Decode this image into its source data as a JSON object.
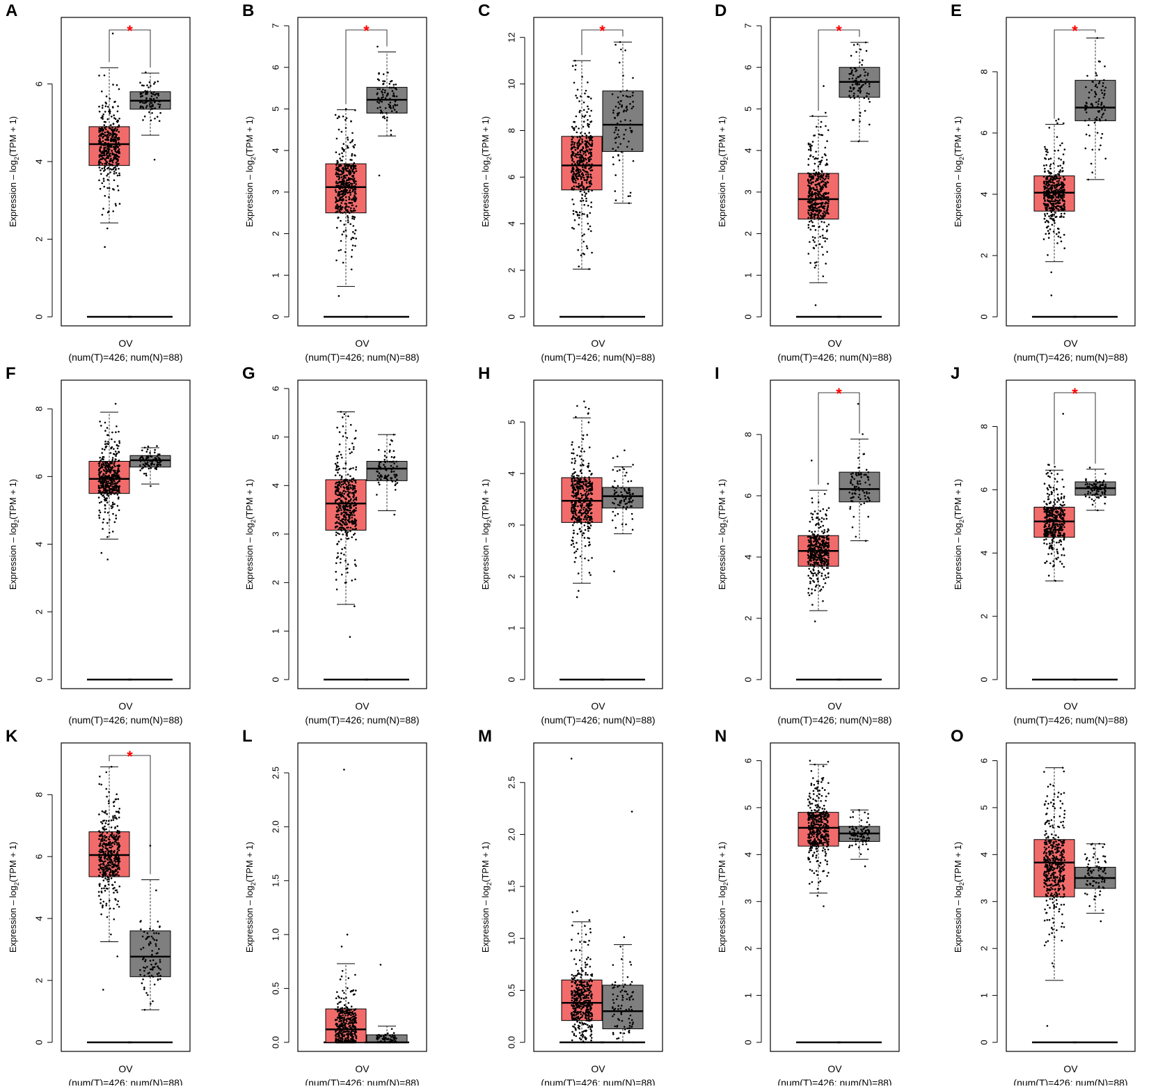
{
  "figure": {
    "colors": {
      "tumor": "#f26b6b",
      "normal": "#7f7f7f",
      "star": "#ff0000",
      "axis": "#000000"
    },
    "y_axis_label_prefix": "Expression – log",
    "y_axis_label_sub": "2",
    "y_axis_label_suffix": "(TPM + 1)",
    "x_tick_label": "OV",
    "x_sub_label": "(num(T)=426; num(N)=88)",
    "significance_marker": "*"
  },
  "chart_data": [
    {
      "panel": "A",
      "type": "box",
      "ylim": [
        0,
        7.5
      ],
      "yticks": [
        "0",
        "2",
        "4",
        "6"
      ],
      "significant": true,
      "tumor": {
        "n": 426,
        "q1": 3.9,
        "median": 4.45,
        "q3": 4.9,
        "whisker_low": 2.42,
        "whisker_high": 6.42,
        "min": 1.8,
        "max": 7.3
      },
      "normal": {
        "n": 88,
        "q1": 5.35,
        "median": 5.57,
        "q3": 5.8,
        "whisker_low": 4.68,
        "whisker_high": 6.28,
        "min": 4.05,
        "max": 6.3
      }
    },
    {
      "panel": "B",
      "type": "box",
      "ylim": [
        0,
        7
      ],
      "yticks": [
        "0",
        "1",
        "2",
        "3",
        "4",
        "5",
        "6",
        "7"
      ],
      "significant": true,
      "tumor": {
        "n": 426,
        "q1": 2.5,
        "median": 3.12,
        "q3": 3.68,
        "whisker_low": 0.73,
        "whisker_high": 4.98,
        "min": 0.5,
        "max": 5.0
      },
      "normal": {
        "n": 88,
        "q1": 4.9,
        "median": 5.22,
        "q3": 5.52,
        "whisker_low": 4.35,
        "whisker_high": 6.37,
        "min": 3.4,
        "max": 6.5
      }
    },
    {
      "panel": "C",
      "type": "box",
      "ylim": [
        0,
        12.5
      ],
      "yticks": [
        "0",
        "2",
        "4",
        "6",
        "8",
        "10",
        "12"
      ],
      "significant": true,
      "tumor": {
        "n": 426,
        "q1": 5.45,
        "median": 6.5,
        "q3": 7.75,
        "whisker_low": 2.05,
        "whisker_high": 11.0,
        "min": 2.05,
        "max": 11.0
      },
      "normal": {
        "n": 88,
        "q1": 7.1,
        "median": 8.25,
        "q3": 9.7,
        "whisker_low": 4.88,
        "whisker_high": 11.8,
        "min": 4.88,
        "max": 11.8
      }
    },
    {
      "panel": "D",
      "type": "box",
      "ylim": [
        0,
        7
      ],
      "yticks": [
        "0",
        "1",
        "2",
        "3",
        "4",
        "5",
        "6",
        "7"
      ],
      "significant": true,
      "tumor": {
        "n": 426,
        "q1": 2.35,
        "median": 2.83,
        "q3": 3.45,
        "whisker_low": 0.82,
        "whisker_high": 4.82,
        "min": 0.28,
        "max": 5.55
      },
      "normal": {
        "n": 88,
        "q1": 5.28,
        "median": 5.65,
        "q3": 6.0,
        "whisker_low": 4.22,
        "whisker_high": 6.6,
        "min": 4.22,
        "max": 6.6
      }
    },
    {
      "panel": "E",
      "type": "box",
      "ylim": [
        0,
        9.5
      ],
      "yticks": [
        "0",
        "2",
        "4",
        "6",
        "8"
      ],
      "significant": true,
      "tumor": {
        "n": 426,
        "q1": 3.45,
        "median": 4.05,
        "q3": 4.6,
        "whisker_low": 1.8,
        "whisker_high": 6.28,
        "min": 0.7,
        "max": 6.45
      },
      "normal": {
        "n": 88,
        "q1": 6.4,
        "median": 6.83,
        "q3": 7.72,
        "whisker_low": 4.48,
        "whisker_high": 9.1,
        "min": 4.48,
        "max": 9.1
      }
    },
    {
      "panel": "F",
      "type": "box",
      "ylim": [
        0,
        8.6
      ],
      "yticks": [
        "0",
        "2",
        "4",
        "6",
        "8"
      ],
      "significant": false,
      "tumor": {
        "n": 426,
        "q1": 5.5,
        "median": 5.93,
        "q3": 6.45,
        "whisker_low": 4.15,
        "whisker_high": 7.9,
        "min": 3.55,
        "max": 8.15
      },
      "normal": {
        "n": 88,
        "q1": 6.28,
        "median": 6.48,
        "q3": 6.62,
        "whisker_low": 5.78,
        "whisker_high": 6.85,
        "min": 5.72,
        "max": 6.9
      }
    },
    {
      "panel": "G",
      "type": "box",
      "ylim": [
        0,
        6
      ],
      "yticks": [
        "0",
        "1",
        "2",
        "3",
        "4",
        "5",
        "6"
      ],
      "significant": false,
      "tumor": {
        "n": 426,
        "q1": 3.08,
        "median": 3.63,
        "q3": 4.12,
        "whisker_low": 1.55,
        "whisker_high": 5.52,
        "min": 0.88,
        "max": 5.52
      },
      "normal": {
        "n": 88,
        "q1": 4.1,
        "median": 4.35,
        "q3": 4.5,
        "whisker_low": 3.48,
        "whisker_high": 5.05,
        "min": 3.4,
        "max": 5.05
      }
    },
    {
      "panel": "H",
      "type": "box",
      "ylim": [
        0,
        5.65
      ],
      "yticks": [
        "0",
        "1",
        "2",
        "3",
        "4",
        "5"
      ],
      "significant": false,
      "tumor": {
        "n": 426,
        "q1": 3.05,
        "median": 3.47,
        "q3": 3.92,
        "whisker_low": 1.87,
        "whisker_high": 5.08,
        "min": 1.6,
        "max": 5.4
      },
      "normal": {
        "n": 88,
        "q1": 3.33,
        "median": 3.56,
        "q3": 3.73,
        "whisker_low": 2.83,
        "whisker_high": 4.13,
        "min": 2.1,
        "max": 4.45
      }
    },
    {
      "panel": "I",
      "type": "box",
      "ylim": [
        0,
        9.5
      ],
      "yticks": [
        "0",
        "2",
        "4",
        "6",
        "8"
      ],
      "significant": true,
      "tumor": {
        "n": 426,
        "q1": 3.7,
        "median": 4.2,
        "q3": 4.7,
        "whisker_low": 2.25,
        "whisker_high": 6.18,
        "min": 1.9,
        "max": 7.15
      },
      "normal": {
        "n": 88,
        "q1": 5.8,
        "median": 6.22,
        "q3": 6.77,
        "whisker_low": 4.53,
        "whisker_high": 7.85,
        "min": 4.53,
        "max": 9.0
      }
    },
    {
      "panel": "J",
      "type": "box",
      "ylim": [
        0,
        9.2
      ],
      "yticks": [
        "0",
        "2",
        "4",
        "6",
        "8"
      ],
      "significant": true,
      "tumor": {
        "n": 426,
        "q1": 4.5,
        "median": 5.0,
        "q3": 5.45,
        "whisker_low": 3.12,
        "whisker_high": 6.62,
        "min": 3.12,
        "max": 8.4
      },
      "normal": {
        "n": 88,
        "q1": 5.83,
        "median": 6.05,
        "q3": 6.25,
        "whisker_low": 5.35,
        "whisker_high": 6.65,
        "min": 5.35,
        "max": 6.7
      }
    },
    {
      "panel": "K",
      "type": "box",
      "ylim": [
        0,
        9.4
      ],
      "yticks": [
        "0",
        "2",
        "4",
        "6",
        "8"
      ],
      "significant": true,
      "tumor": {
        "n": 426,
        "q1": 5.35,
        "median": 6.05,
        "q3": 6.8,
        "whisker_low": 3.25,
        "whisker_high": 8.9,
        "min": 1.7,
        "max": 8.9
      },
      "normal": {
        "n": 88,
        "q1": 2.12,
        "median": 2.77,
        "q3": 3.6,
        "whisker_low": 1.05,
        "whisker_high": 5.25,
        "min": 1.05,
        "max": 6.35
      }
    },
    {
      "panel": "L",
      "type": "box",
      "ylim": [
        0,
        2.7
      ],
      "yticks": [
        "0.0",
        "0.5",
        "1.0",
        "1.5",
        "2.0",
        "2.5"
      ],
      "significant": false,
      "tumor": {
        "n": 426,
        "q1": 0.0,
        "median": 0.12,
        "q3": 0.31,
        "whisker_low": 0.0,
        "whisker_high": 0.73,
        "min": 0.0,
        "max": 2.53
      },
      "normal": {
        "n": 88,
        "q1": 0.0,
        "median": 0.0,
        "q3": 0.07,
        "whisker_low": 0.0,
        "whisker_high": 0.15,
        "min": 0.0,
        "max": 0.72
      }
    },
    {
      "panel": "M",
      "type": "box",
      "ylim": [
        0,
        2.8
      ],
      "yticks": [
        "0.0",
        "0.5",
        "1.0",
        "1.5",
        "2.0",
        "2.5"
      ],
      "significant": false,
      "tumor": {
        "n": 426,
        "q1": 0.21,
        "median": 0.38,
        "q3": 0.6,
        "whisker_low": 0.0,
        "whisker_high": 1.16,
        "min": 0.0,
        "max": 2.73
      },
      "normal": {
        "n": 88,
        "q1": 0.13,
        "median": 0.3,
        "q3": 0.55,
        "whisker_low": 0.0,
        "whisker_high": 0.94,
        "min": 0.0,
        "max": 2.22
      }
    },
    {
      "panel": "N",
      "type": "box",
      "ylim": [
        0,
        6.2
      ],
      "yticks": [
        "0",
        "1",
        "2",
        "3",
        "4",
        "5",
        "6"
      ],
      "significant": false,
      "tumor": {
        "n": 426,
        "q1": 4.18,
        "median": 4.57,
        "q3": 4.9,
        "whisker_low": 3.18,
        "whisker_high": 5.92,
        "min": 2.9,
        "max": 6.0
      },
      "normal": {
        "n": 88,
        "q1": 4.28,
        "median": 4.45,
        "q3": 4.6,
        "whisker_low": 3.9,
        "whisker_high": 4.95,
        "min": 3.75,
        "max": 4.95
      }
    },
    {
      "panel": "O",
      "type": "box",
      "ylim": [
        0,
        6.2
      ],
      "yticks": [
        "0",
        "1",
        "2",
        "3",
        "4",
        "5",
        "6"
      ],
      "significant": false,
      "tumor": {
        "n": 426,
        "q1": 3.1,
        "median": 3.83,
        "q3": 4.32,
        "whisker_low": 1.32,
        "whisker_high": 5.85,
        "min": 0.35,
        "max": 5.85
      },
      "normal": {
        "n": 88,
        "q1": 3.28,
        "median": 3.5,
        "q3": 3.73,
        "whisker_low": 2.75,
        "whisker_high": 4.23,
        "min": 2.58,
        "max": 4.23
      }
    }
  ]
}
